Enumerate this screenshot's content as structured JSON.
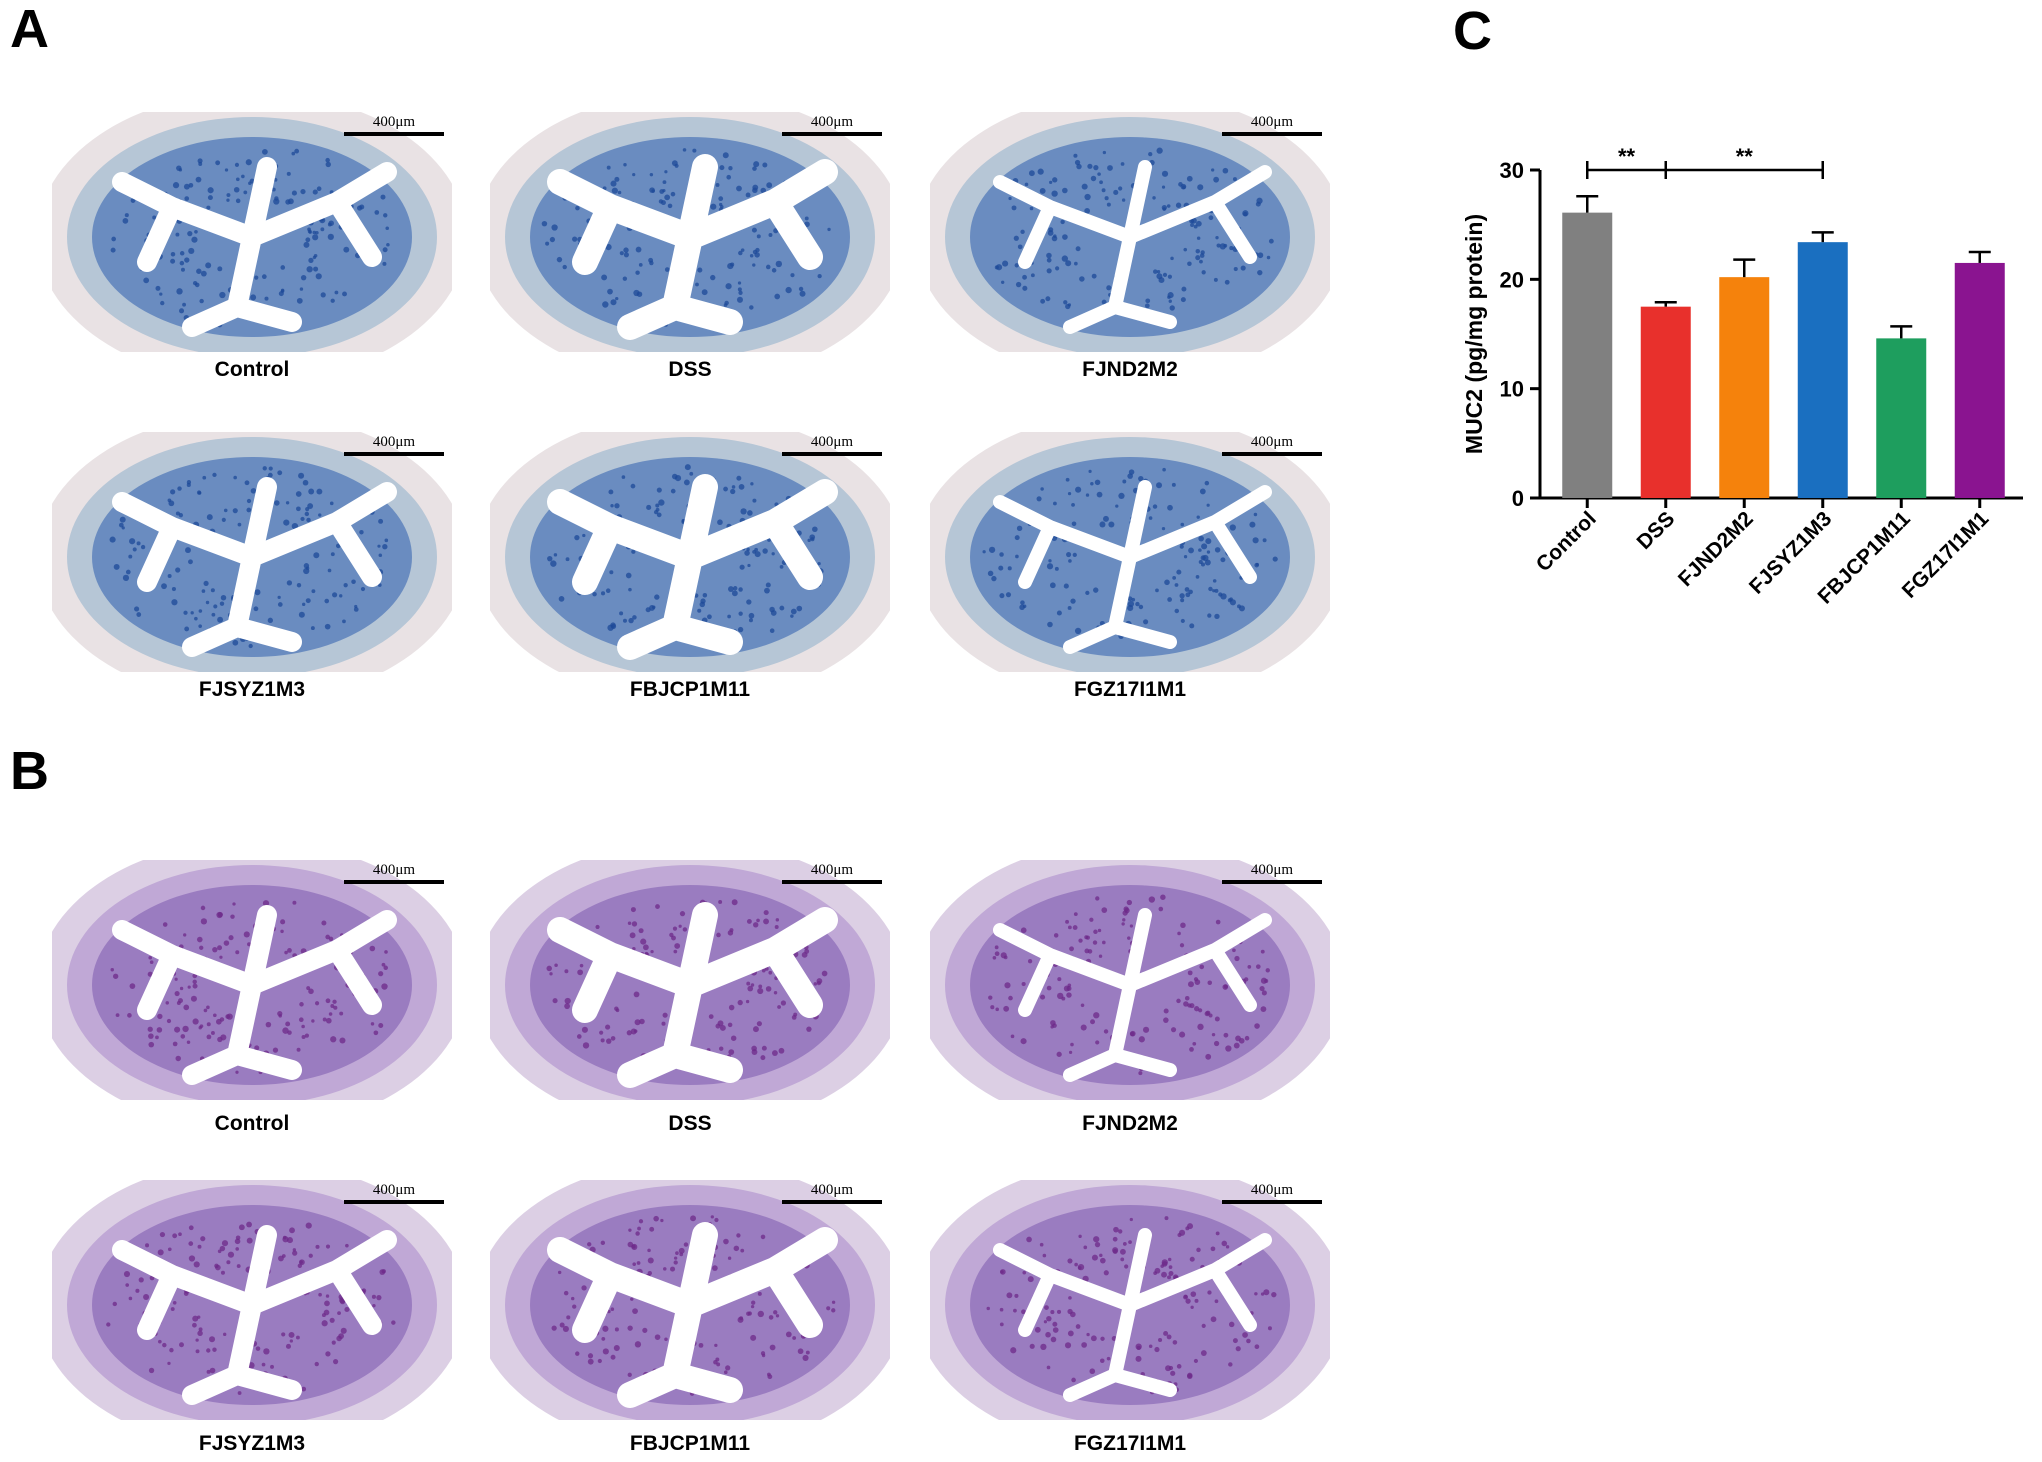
{
  "panels": {
    "a": {
      "letter": "A",
      "scale_label": "400μm",
      "stain": "alcian blue",
      "labels": [
        "Control",
        "DSS",
        "FJND2M2",
        "FJSYZ1M3",
        "FBJCP1M11",
        "FGZ17I1M1"
      ]
    },
    "b": {
      "letter": "B",
      "scale_label": "400μm",
      "stain": "PAS",
      "labels": [
        "Control",
        "DSS",
        "FJND2M2",
        "FJSYZ1M3",
        "FBJCP1M11",
        "FGZ17I1M1"
      ]
    },
    "c": {
      "letter": "C"
    }
  },
  "colors": {
    "a_outer": "#e9e2e4",
    "a_wall": "#b6c6d6",
    "a_mucosa": "#6a8cc0",
    "a_goblet": "#1e4a98",
    "b_outer": "#dccfe4",
    "b_wall": "#c0a8d6",
    "b_mucosa": "#9a7cc0",
    "b_goblet": "#6e2a8a"
  },
  "chart_data": {
    "type": "bar",
    "categories": [
      "Control",
      "DSS",
      "FJND2M2",
      "FJSYZ1M3",
      "FBJCP1M11",
      "FGZ17I1M1"
    ],
    "values": [
      26.1,
      17.5,
      20.2,
      23.4,
      14.6,
      21.5
    ],
    "errors": [
      1.5,
      0.4,
      1.6,
      0.9,
      1.1,
      1.0
    ],
    "colors": [
      "#808080",
      "#e8302c",
      "#f5820c",
      "#1a6fc0",
      "#1e9e5e",
      "#8a1490"
    ],
    "ylabel": "MUC2 (pg/mg protein)",
    "xlabel": "",
    "ylim": [
      0,
      30
    ],
    "yticks": [
      0,
      10,
      20,
      30
    ],
    "significance": [
      {
        "from": "Control",
        "to": "DSS",
        "label": "**"
      },
      {
        "from": "DSS",
        "to": "FJSYZ1M3",
        "label": "**"
      }
    ],
    "grid": false
  }
}
